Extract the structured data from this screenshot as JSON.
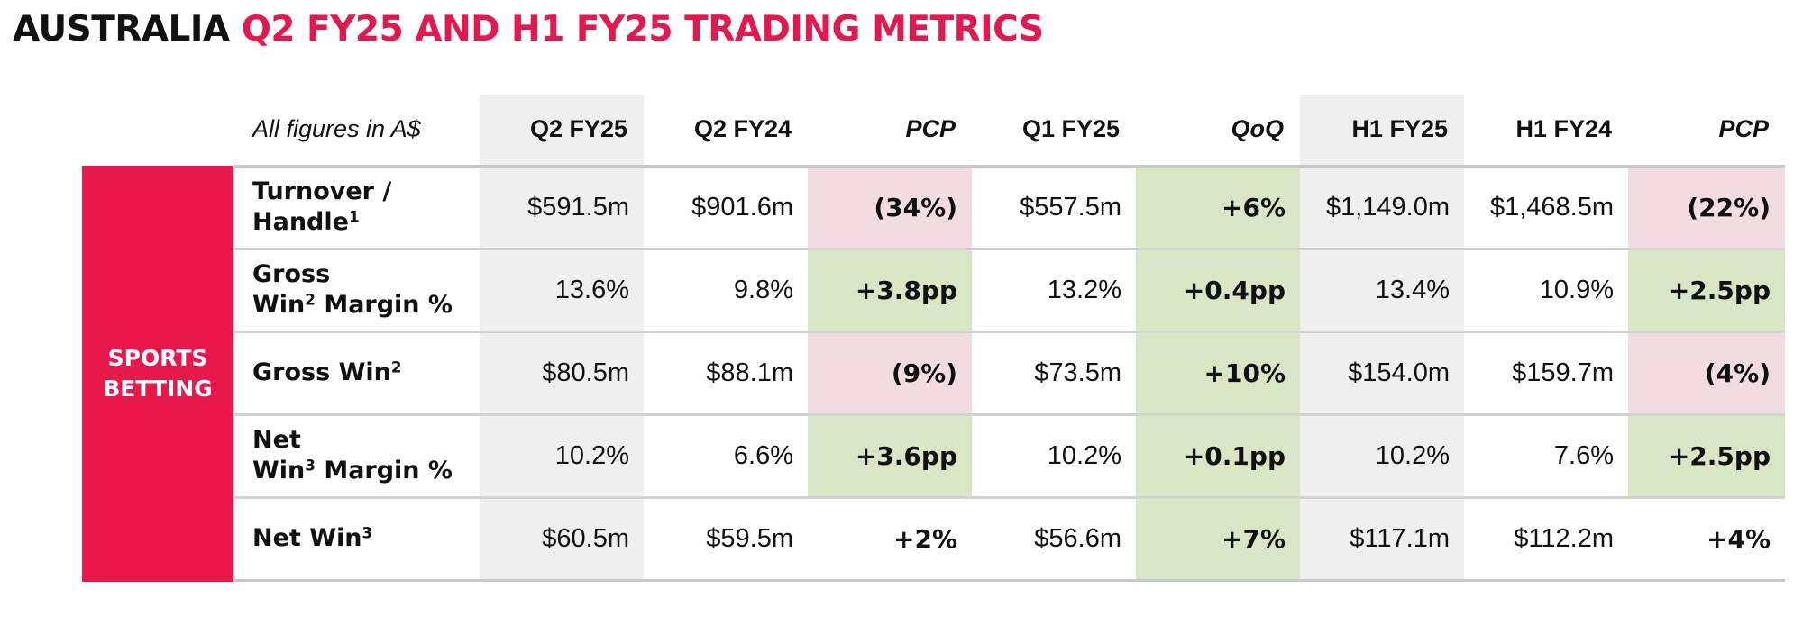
{
  "title": {
    "prefix": "AUSTRALIA",
    "accent": "Q2 FY25 AND H1 FY25 TRADING METRICS"
  },
  "segment_label": [
    "SPORTS",
    "BETTING"
  ],
  "colors": {
    "accent": "#e4174f",
    "segment_bg": "#e8194a",
    "positive": "#d9e6c6",
    "negative": "#f0dce1",
    "shade": "#efefef"
  },
  "table": {
    "header_label": "All figures in A$",
    "columns": [
      "Q2 FY25",
      "Q2 FY24",
      "PCP",
      "Q1 FY25",
      "QoQ",
      "H1 FY25",
      "H1 FY24",
      "PCP"
    ],
    "rows": [
      {
        "label": [
          "Turnover /",
          "Handle",
          "1"
        ],
        "values": [
          "$591.5m",
          "$901.6m",
          "(34%)",
          "$557.5m",
          "+6%",
          "$1,149.0m",
          "$1,468.5m",
          "(22%)"
        ]
      },
      {
        "label": [
          "Gross",
          "Win",
          "2",
          " Margin %"
        ],
        "values": [
          "13.6%",
          "9.8%",
          "+3.8pp",
          "13.2%",
          "+0.4pp",
          "13.4%",
          "10.9%",
          "+2.5pp"
        ]
      },
      {
        "label": [
          "Gross Win",
          "2"
        ],
        "values": [
          "$80.5m",
          "$88.1m",
          "(9%)",
          "$73.5m",
          "+10%",
          "$154.0m",
          "$159.7m",
          "(4%)"
        ]
      },
      {
        "label": [
          "Net",
          "Win",
          "3",
          " Margin %"
        ],
        "values": [
          "10.2%",
          "6.6%",
          "+3.6pp",
          "10.2%",
          "+0.1pp",
          "10.2%",
          "7.6%",
          "+2.5pp"
        ]
      },
      {
        "label": [
          "Net Win",
          "3"
        ],
        "values": [
          "$60.5m",
          "$59.5m",
          "+2%",
          "$56.6m",
          "+7%",
          "$117.1m",
          "$112.2m",
          "+4%"
        ]
      }
    ]
  }
}
